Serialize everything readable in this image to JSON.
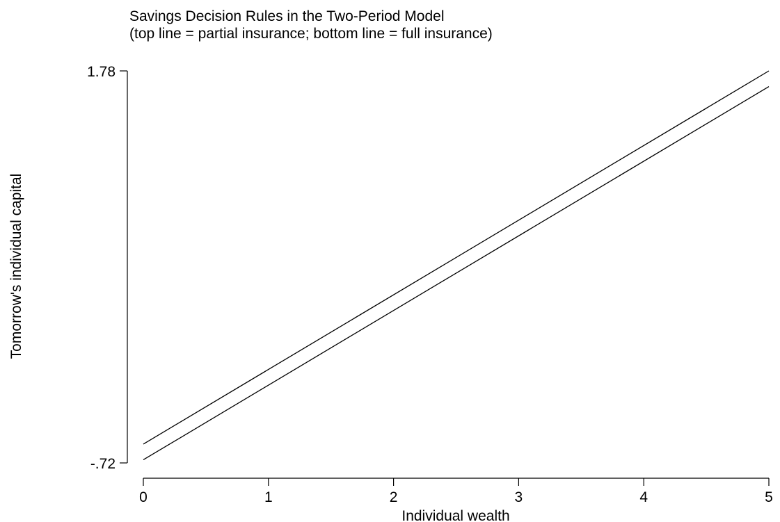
{
  "chart_data": {
    "type": "line",
    "title_lines": [
      "Savings Decision Rules in the Two-Period Model",
      "(top line = partial insurance; bottom line = full insurance)"
    ],
    "xlabel": "Individual wealth",
    "ylabel": "Tomorrow's individual capital",
    "xlim": [
      0,
      5
    ],
    "ylim": [
      -0.72,
      1.78
    ],
    "x_ticks": [
      {
        "value": 0,
        "label": "0"
      },
      {
        "value": 1,
        "label": "1"
      },
      {
        "value": 2,
        "label": "2"
      },
      {
        "value": 3,
        "label": "3"
      },
      {
        "value": 4,
        "label": "4"
      },
      {
        "value": 5,
        "label": "5"
      }
    ],
    "y_ticks": [
      {
        "value": -0.72,
        "label": "-.72"
      },
      {
        "value": 1.78,
        "label": "1.78"
      }
    ],
    "grid": false,
    "line_color": "#000000",
    "series": [
      {
        "x": [
          0,
          5
        ],
        "y": [
          -0.6,
          1.78
        ]
      },
      {
        "x": [
          0,
          5
        ],
        "y": [
          -0.7,
          1.68
        ]
      }
    ]
  }
}
